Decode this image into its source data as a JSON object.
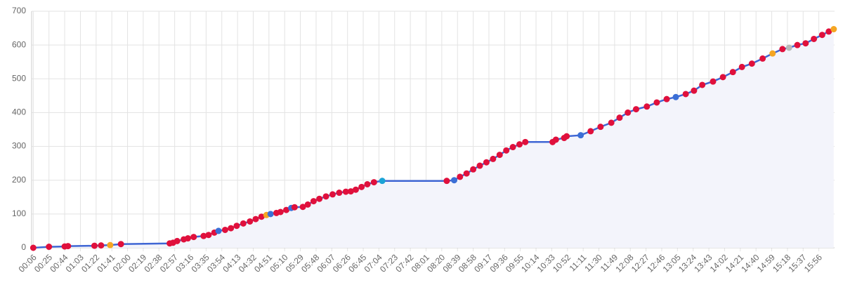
{
  "chart_data": {
    "type": "line",
    "xlim": [
      4,
      975
    ],
    "ylim": [
      0,
      700
    ],
    "yticks": [
      0,
      100,
      200,
      300,
      400,
      500,
      600,
      700
    ],
    "xticks": [
      {
        "value": 6,
        "label": "00:06"
      },
      {
        "value": 25,
        "label": "00:25"
      },
      {
        "value": 44,
        "label": "00:44"
      },
      {
        "value": 63,
        "label": "01:03"
      },
      {
        "value": 82,
        "label": "01:22"
      },
      {
        "value": 101,
        "label": "01:41"
      },
      {
        "value": 120,
        "label": "02:00"
      },
      {
        "value": 139,
        "label": "02:19"
      },
      {
        "value": 158,
        "label": "02:38"
      },
      {
        "value": 177,
        "label": "02:57"
      },
      {
        "value": 196,
        "label": "03:16"
      },
      {
        "value": 215,
        "label": "03:35"
      },
      {
        "value": 234,
        "label": "03:54"
      },
      {
        "value": 253,
        "label": "04:13"
      },
      {
        "value": 272,
        "label": "04:32"
      },
      {
        "value": 291,
        "label": "04:51"
      },
      {
        "value": 310,
        "label": "05:10"
      },
      {
        "value": 329,
        "label": "05:29"
      },
      {
        "value": 348,
        "label": "05:48"
      },
      {
        "value": 367,
        "label": "06:07"
      },
      {
        "value": 386,
        "label": "06:26"
      },
      {
        "value": 405,
        "label": "06:45"
      },
      {
        "value": 424,
        "label": "07:04"
      },
      {
        "value": 443,
        "label": "07:23"
      },
      {
        "value": 462,
        "label": "07:42"
      },
      {
        "value": 481,
        "label": "08:01"
      },
      {
        "value": 500,
        "label": "08:20"
      },
      {
        "value": 519,
        "label": "08:39"
      },
      {
        "value": 538,
        "label": "08:58"
      },
      {
        "value": 557,
        "label": "09:17"
      },
      {
        "value": 576,
        "label": "09:36"
      },
      {
        "value": 595,
        "label": "09:55"
      },
      {
        "value": 614,
        "label": "10:14"
      },
      {
        "value": 633,
        "label": "10:33"
      },
      {
        "value": 652,
        "label": "10:52"
      },
      {
        "value": 671,
        "label": "11:11"
      },
      {
        "value": 690,
        "label": "11:30"
      },
      {
        "value": 709,
        "label": "11:49"
      },
      {
        "value": 728,
        "label": "12:08"
      },
      {
        "value": 747,
        "label": "12:27"
      },
      {
        "value": 766,
        "label": "12:46"
      },
      {
        "value": 785,
        "label": "13:05"
      },
      {
        "value": 804,
        "label": "13:24"
      },
      {
        "value": 823,
        "label": "13:43"
      },
      {
        "value": 842,
        "label": "14:02"
      },
      {
        "value": 861,
        "label": "14:21"
      },
      {
        "value": 880,
        "label": "14:40"
      },
      {
        "value": 899,
        "label": "14:59"
      },
      {
        "value": 918,
        "label": "15:18"
      },
      {
        "value": 937,
        "label": "15:37"
      },
      {
        "value": 956,
        "label": "15:56"
      }
    ],
    "grid": true,
    "line_color": "#3f66d4",
    "area_color": "#f3f4fb",
    "x": [
      6,
      25,
      44,
      48,
      80,
      88,
      99,
      112,
      171,
      175,
      180,
      188,
      193,
      200,
      212,
      218,
      225,
      230,
      238,
      245,
      252,
      260,
      268,
      275,
      282,
      288,
      293,
      300,
      305,
      312,
      318,
      322,
      332,
      338,
      345,
      352,
      360,
      368,
      376,
      384,
      390,
      396,
      403,
      410,
      418,
      428,
      506,
      515,
      522,
      530,
      538,
      546,
      554,
      562,
      570,
      578,
      586,
      594,
      601,
      634,
      638,
      648,
      651,
      668,
      680,
      692,
      705,
      715,
      725,
      735,
      748,
      760,
      772,
      783,
      795,
      805,
      815,
      828,
      840,
      852,
      863,
      875,
      888,
      900,
      912,
      920,
      930,
      940,
      950,
      960,
      968,
      974
    ],
    "values": [
      0,
      3,
      4,
      5,
      6,
      7,
      8,
      11,
      13,
      15,
      20,
      25,
      28,
      32,
      35,
      38,
      45,
      50,
      53,
      58,
      65,
      72,
      78,
      85,
      92,
      97,
      100,
      103,
      106,
      112,
      118,
      120,
      121,
      128,
      138,
      145,
      152,
      158,
      163,
      166,
      167,
      172,
      180,
      188,
      194,
      198,
      198,
      200,
      210,
      220,
      232,
      243,
      253,
      263,
      275,
      288,
      298,
      306,
      313,
      313,
      320,
      325,
      330,
      333,
      345,
      358,
      370,
      385,
      400,
      410,
      418,
      430,
      440,
      446,
      455,
      465,
      482,
      492,
      505,
      520,
      535,
      545,
      560,
      575,
      588,
      592,
      600,
      605,
      618,
      630,
      640,
      647
    ],
    "point_colors": [
      "#e0103c",
      "#e0103c",
      "#e0103c",
      "#e0103c",
      "#e0103c",
      "#e0103c",
      "#f5a623",
      "#e0103c",
      "#e0103c",
      "#e0103c",
      "#e0103c",
      "#e0103c",
      "#e0103c",
      "#e0103c",
      "#e0103c",
      "#e0103c",
      "#e0103c",
      "#3b6fd6",
      "#e0103c",
      "#e0103c",
      "#e0103c",
      "#e0103c",
      "#e0103c",
      "#e0103c",
      "#e0103c",
      "#f5a623",
      "#3b6fd6",
      "#e0103c",
      "#e0103c",
      "#e0103c",
      "#3b6fd6",
      "#e0103c",
      "#e0103c",
      "#e0103c",
      "#e0103c",
      "#e0103c",
      "#e0103c",
      "#e0103c",
      "#e0103c",
      "#e0103c",
      "#e0103c",
      "#e0103c",
      "#e0103c",
      "#e0103c",
      "#e0103c",
      "#1ba3d6",
      "#e0103c",
      "#3b6fd6",
      "#e0103c",
      "#e0103c",
      "#e0103c",
      "#e0103c",
      "#e0103c",
      "#e0103c",
      "#e0103c",
      "#e0103c",
      "#e0103c",
      "#e0103c",
      "#e0103c",
      "#e0103c",
      "#e0103c",
      "#e0103c",
      "#e0103c",
      "#3b6fd6",
      "#e0103c",
      "#e0103c",
      "#e0103c",
      "#e0103c",
      "#e0103c",
      "#e0103c",
      "#e0103c",
      "#e0103c",
      "#e0103c",
      "#3b6fd6",
      "#e0103c",
      "#e0103c",
      "#e0103c",
      "#e0103c",
      "#e0103c",
      "#e0103c",
      "#e0103c",
      "#e0103c",
      "#e0103c",
      "#f5a623",
      "#e0103c",
      "#b9b9b9",
      "#e0103c",
      "#e0103c",
      "#e0103c",
      "#e0103c",
      "#e0103c",
      "#f5a623"
    ]
  }
}
